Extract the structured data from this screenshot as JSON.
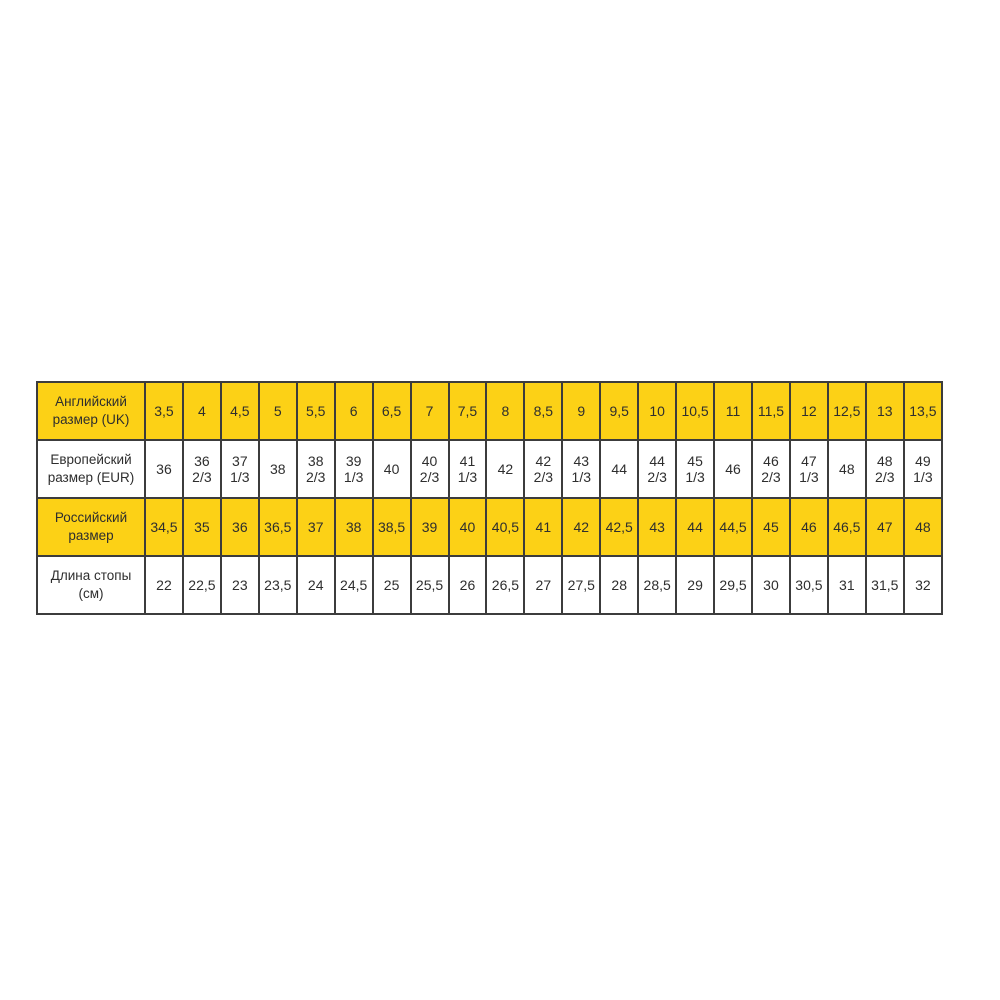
{
  "page": {
    "background": "#ffffff"
  },
  "table": {
    "colors": {
      "highlight": "#fcd116",
      "border": "#3c3c3c",
      "text": "#2e2e2e",
      "cell_background": "#ffffff"
    },
    "rows": [
      {
        "header": "Английский размер (UK)",
        "highlight": true,
        "values": [
          "3,5",
          "4",
          "4,5",
          "5",
          "5,5",
          "6",
          "6,5",
          "7",
          "7,5",
          "8",
          "8,5",
          "9",
          "9,5",
          "10",
          "10,5",
          "11",
          "11,5",
          "12",
          "12,5",
          "13",
          "13,5"
        ]
      },
      {
        "header": "Европейский размер (EUR)",
        "highlight": false,
        "values": [
          "36",
          "36 2/3",
          "37 1/3",
          "38",
          "38 2/3",
          "39 1/3",
          "40",
          "40 2/3",
          "41 1/3",
          "42",
          "42 2/3",
          "43 1/3",
          "44",
          "44 2/3",
          "45 1/3",
          "46",
          "46 2/3",
          "47 1/3",
          "48",
          "48 2/3",
          "49 1/3"
        ]
      },
      {
        "header": "Российский размер",
        "highlight": true,
        "values": [
          "34,5",
          "35",
          "36",
          "36,5",
          "37",
          "38",
          "38,5",
          "39",
          "40",
          "40,5",
          "41",
          "42",
          "42,5",
          "43",
          "44",
          "44,5",
          "45",
          "46",
          "46,5",
          "47",
          "48"
        ]
      },
      {
        "header": "Длина стопы (см)",
        "highlight": false,
        "values": [
          "22",
          "22,5",
          "23",
          "23,5",
          "24",
          "24,5",
          "25",
          "25,5",
          "26",
          "26,5",
          "27",
          "27,5",
          "28",
          "28,5",
          "29",
          "29,5",
          "30",
          "30,5",
          "31",
          "31,5",
          "32"
        ]
      }
    ]
  }
}
